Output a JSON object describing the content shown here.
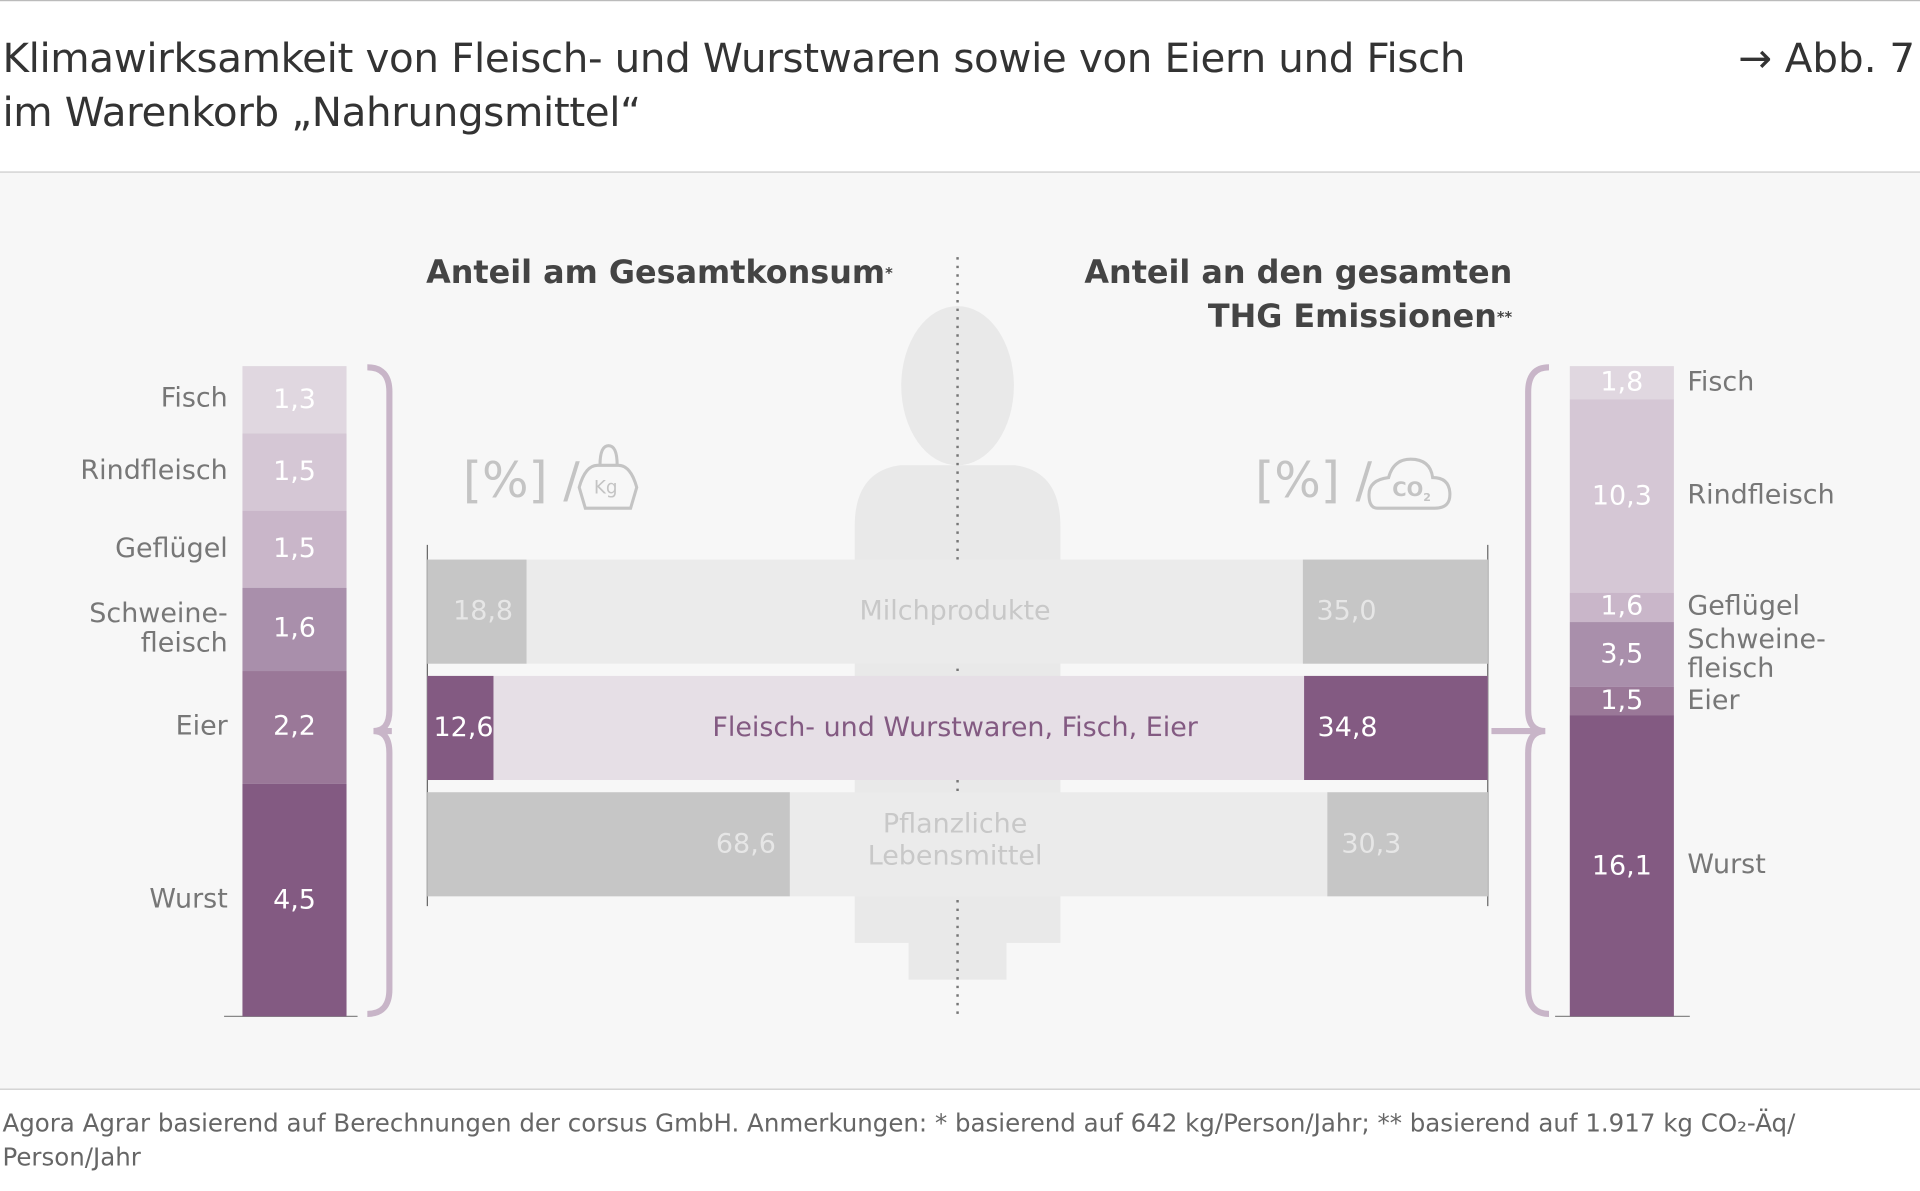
{
  "header": {
    "title_line1": "Klimawirksamkeit von Fleisch- und Wurstwaren sowie von Eiern und Fisch",
    "title_line2": "im Warenkorb „Nahrungsmittel“",
    "figure_ref": "→ Abb. 7"
  },
  "chart_data": [
    {
      "type": "bar",
      "stacked": true,
      "title": "Anteil am Gesamtkonsum",
      "title_marker": "*",
      "unit": "[%] / Kg",
      "categories": [
        "Fisch",
        "Rindfleisch",
        "Geflügel",
        "Schweine-fleisch",
        "Eier",
        "Wurst"
      ],
      "values": [
        1.3,
        1.5,
        1.5,
        1.6,
        2.2,
        4.5
      ],
      "labels": [
        "1,3",
        "1,5",
        "1,5",
        "1,6",
        "2,2",
        "4,5"
      ],
      "colors": [
        "#e0d7e0",
        "#d5c7d5",
        "#c9b6c9",
        "#a98fab",
        "#9a7898",
        "#835a82"
      ]
    },
    {
      "type": "bar",
      "stacked": true,
      "title_line1": "Anteil an den gesamten",
      "title_line2": "THG Emissionen",
      "title_marker": "**",
      "unit": "[%] / CO2",
      "categories": [
        "Fisch",
        "Rindfleisch",
        "Geflügel",
        "Schweine-fleisch",
        "Eier",
        "Wurst"
      ],
      "values": [
        1.8,
        10.3,
        1.6,
        3.5,
        1.5,
        16.1
      ],
      "labels": [
        "1,8",
        "10,3",
        "1,6",
        "3,5",
        "1,5",
        "16,1"
      ],
      "colors": [
        "#e0d7e0",
        "#d5c7d5",
        "#c9b6c9",
        "#a98fab",
        "#9a7898",
        "#835a82"
      ]
    },
    {
      "type": "bar",
      "orientation": "horizontal",
      "diverging": true,
      "categories": [
        "Milchprodukte",
        "Fleisch- und Wurstwaren, Fisch, Eier",
        "Pflanzliche Lebensmittel"
      ],
      "series": [
        {
          "values": [
            18.8,
            12.6,
            68.6
          ],
          "labels": [
            "18,8",
            "12,6",
            "68,6"
          ]
        },
        {
          "values": [
            35.0,
            34.8,
            30.3
          ],
          "labels": [
            "35,0",
            "34,8",
            "30,3"
          ]
        }
      ],
      "highlight": "Fleisch- und Wurstwaren, Fisch, Eier",
      "highlight_color": "#835a82"
    }
  ],
  "units": {
    "percent": "[%]",
    "slash": "/",
    "kg": "Kg",
    "co2": "CO",
    "co2_sub": "2"
  },
  "footer": {
    "text": "Agora Agrar basierend auf Berechnungen der corsus GmbH. Anmerkungen: * basierend auf 642 kg/Person/Jahr; ** basierend auf 1.917 kg CO₂-Äq/ Person/Jahr"
  }
}
